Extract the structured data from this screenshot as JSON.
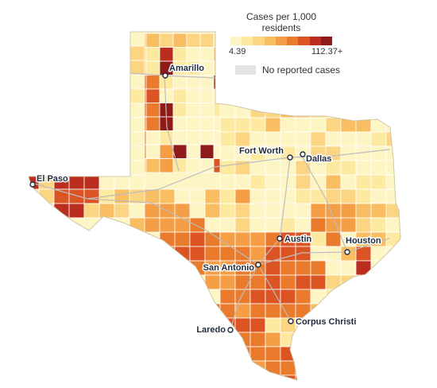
{
  "legend": {
    "title": "Cases per 1,000 residents",
    "min_label": "4.39",
    "max_label": "112.37+",
    "no_data_label": "No reported cases",
    "colors": [
      "#fdf5c4",
      "#fde9a0",
      "#fcd583",
      "#f9bd62",
      "#f59e46",
      "#ea7b2c",
      "#dc5424",
      "#bb2e1f",
      "#8e1a1a"
    ]
  },
  "colors": {
    "border": "#ffffff",
    "roads": "#bdbdbd",
    "city_marker": "#1f2d3d"
  },
  "cities": [
    {
      "name": "Amarillo"
    },
    {
      "name": "Fort Worth"
    },
    {
      "name": "Dallas"
    },
    {
      "name": "El Paso"
    },
    {
      "name": "Austin"
    },
    {
      "name": "Houston"
    },
    {
      "name": "San Antonio"
    },
    {
      "name": "Corpus Christi"
    },
    {
      "name": "Laredo"
    }
  ]
}
